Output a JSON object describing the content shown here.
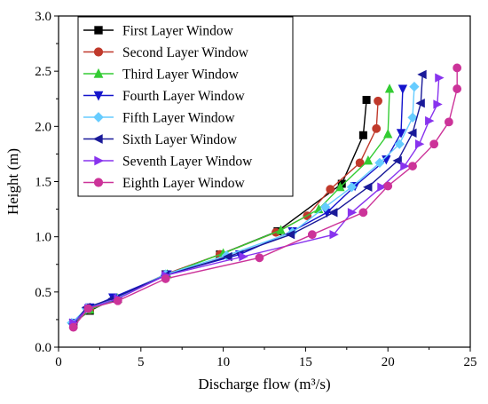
{
  "chart_data": {
    "type": "line",
    "title": "",
    "xlabel": "Discharge flow (m³/s)",
    "ylabel": "Height (m)",
    "xlim": [
      0,
      25
    ],
    "ylim": [
      0,
      3.0
    ],
    "xticks": [
      "0",
      "5",
      "10",
      "15",
      "20",
      "25"
    ],
    "yticks": [
      "0.0",
      "0.5",
      "1.0",
      "1.5",
      "2.0",
      "2.5",
      "3.0"
    ],
    "grid": false,
    "legend_position": "top-left",
    "series": [
      {
        "name": "First Layer Window",
        "color": "#000000",
        "marker": "square",
        "points": [
          [
            0.9,
            0.22
          ],
          [
            1.9,
            0.33
          ],
          [
            3.4,
            0.44
          ],
          [
            6.5,
            0.66
          ],
          [
            9.8,
            0.84
          ],
          [
            13.3,
            1.05
          ],
          [
            17.2,
            1.48
          ],
          [
            18.5,
            1.92
          ],
          [
            18.7,
            2.24
          ]
        ]
      },
      {
        "name": "Second Layer Window",
        "color": "#c0392b",
        "marker": "circle",
        "points": [
          [
            0.9,
            0.21
          ],
          [
            1.9,
            0.34
          ],
          [
            3.6,
            0.44
          ],
          [
            6.5,
            0.66
          ],
          [
            9.8,
            0.84
          ],
          [
            13.2,
            1.04
          ],
          [
            15.1,
            1.19
          ],
          [
            16.5,
            1.43
          ],
          [
            18.3,
            1.67
          ],
          [
            19.3,
            1.98
          ],
          [
            19.4,
            2.23
          ]
        ]
      },
      {
        "name": "Third Layer Window",
        "color": "#33cc33",
        "marker": "triangle-up",
        "points": [
          [
            0.9,
            0.21
          ],
          [
            1.9,
            0.34
          ],
          [
            3.6,
            0.44
          ],
          [
            6.6,
            0.66
          ],
          [
            10.0,
            0.85
          ],
          [
            13.5,
            1.06
          ],
          [
            15.8,
            1.25
          ],
          [
            17.1,
            1.45
          ],
          [
            18.8,
            1.69
          ],
          [
            20.0,
            1.93
          ],
          [
            20.1,
            2.34
          ]
        ]
      },
      {
        "name": "Fourth Layer Window",
        "color": "#1414cc",
        "marker": "triangle-down",
        "points": [
          [
            0.9,
            0.22
          ],
          [
            1.9,
            0.36
          ],
          [
            3.3,
            0.45
          ],
          [
            6.6,
            0.66
          ],
          [
            11.0,
            0.84
          ],
          [
            14.2,
            1.05
          ],
          [
            16.3,
            1.22
          ],
          [
            18.0,
            1.46
          ],
          [
            19.9,
            1.7
          ],
          [
            20.8,
            1.94
          ],
          [
            20.9,
            2.34
          ]
        ]
      },
      {
        "name": "Fifth Layer Window",
        "color": "#66ccff",
        "marker": "diamond",
        "points": [
          [
            0.8,
            0.22
          ],
          [
            1.7,
            0.35
          ],
          [
            3.5,
            0.44
          ],
          [
            6.5,
            0.66
          ],
          [
            10.2,
            0.83
          ],
          [
            14.2,
            1.04
          ],
          [
            16.2,
            1.27
          ],
          [
            17.8,
            1.45
          ],
          [
            19.5,
            1.67
          ],
          [
            20.7,
            1.84
          ],
          [
            21.5,
            2.08
          ],
          [
            21.6,
            2.36
          ]
        ]
      },
      {
        "name": "Sixth Layer Window",
        "color": "#1a1a99",
        "marker": "triangle-left",
        "points": [
          [
            0.9,
            0.21
          ],
          [
            1.7,
            0.36
          ],
          [
            3.3,
            0.44
          ],
          [
            6.5,
            0.65
          ],
          [
            10.3,
            0.82
          ],
          [
            14.1,
            1.02
          ],
          [
            16.7,
            1.22
          ],
          [
            18.8,
            1.45
          ],
          [
            20.6,
            1.69
          ],
          [
            21.5,
            1.94
          ],
          [
            22.0,
            2.21
          ],
          [
            22.1,
            2.47
          ]
        ]
      },
      {
        "name": "Seventh Layer Window",
        "color": "#8833ee",
        "marker": "triangle-right",
        "points": [
          [
            0.9,
            0.22
          ],
          [
            1.8,
            0.35
          ],
          [
            3.6,
            0.44
          ],
          [
            6.5,
            0.65
          ],
          [
            11.2,
            0.82
          ],
          [
            16.7,
            1.02
          ],
          [
            17.8,
            1.22
          ],
          [
            19.6,
            1.45
          ],
          [
            21.0,
            1.64
          ],
          [
            21.9,
            1.84
          ],
          [
            22.5,
            2.05
          ],
          [
            23.0,
            2.2
          ],
          [
            23.1,
            2.44
          ]
        ]
      },
      {
        "name": "Eighth Layer Window",
        "color": "#cc3399",
        "marker": "circle",
        "points": [
          [
            0.9,
            0.18
          ],
          [
            1.8,
            0.35
          ],
          [
            3.6,
            0.42
          ],
          [
            6.5,
            0.62
          ],
          [
            12.2,
            0.81
          ],
          [
            15.4,
            1.02
          ],
          [
            18.5,
            1.22
          ],
          [
            20.0,
            1.46
          ],
          [
            21.5,
            1.64
          ],
          [
            22.8,
            1.84
          ],
          [
            23.7,
            2.04
          ],
          [
            24.2,
            2.34
          ],
          [
            24.2,
            2.53
          ]
        ]
      }
    ]
  }
}
